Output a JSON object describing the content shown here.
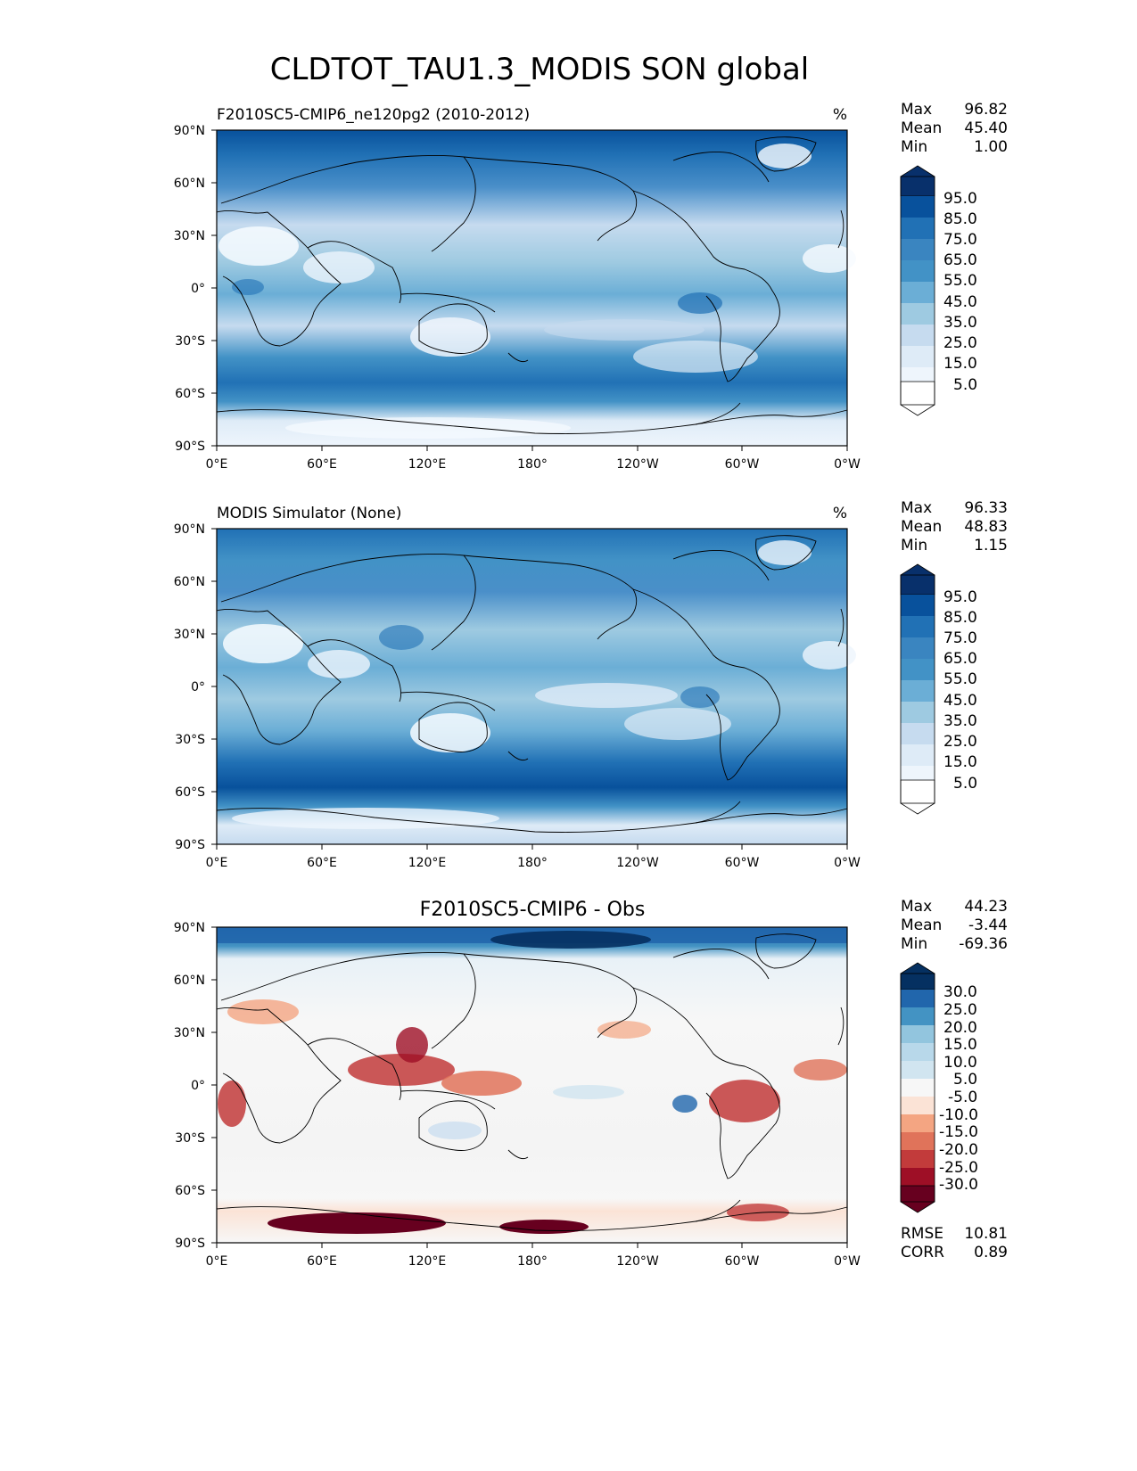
{
  "title": "CLDTOT_TAU1.3_MODIS SON global",
  "lat_ticks": [
    "90°N",
    "60°N",
    "30°N",
    "0°",
    "30°S",
    "60°S",
    "90°S"
  ],
  "lon_ticks": [
    "0°E",
    "60°E",
    "120°E",
    "180°",
    "120°W",
    "60°W",
    "0°W"
  ],
  "panels": [
    {
      "left_title": "F2010SC5-CMIP6_ne120pg2 (2010-2012)",
      "center_title": "",
      "units": "%",
      "stats": [
        {
          "label": "Max",
          "value": "96.82"
        },
        {
          "label": "Mean",
          "value": "45.40"
        },
        {
          "label": "Min",
          "value": "1.00"
        }
      ],
      "colorbar_labels": [
        "95.0",
        "85.0",
        "75.0",
        "65.0",
        "55.0",
        "45.0",
        "35.0",
        "25.0",
        "15.0",
        "5.0"
      ],
      "colorbar_colors": [
        "#08306b",
        "#08519c",
        "#2171b5",
        "#4292c6",
        "#6baed6",
        "#9ecae1",
        "#c6dbef",
        "#deebf7",
        "#eef5fc",
        "#f7fbff"
      ]
    },
    {
      "left_title": "MODIS Simulator (None)",
      "center_title": "",
      "units": "%",
      "stats": [
        {
          "label": "Max",
          "value": "96.33"
        },
        {
          "label": "Mean",
          "value": "48.83"
        },
        {
          "label": "Min",
          "value": "1.15"
        }
      ],
      "colorbar_labels": [
        "95.0",
        "85.0",
        "75.0",
        "65.0",
        "55.0",
        "45.0",
        "35.0",
        "25.0",
        "15.0",
        "5.0"
      ],
      "colorbar_colors": [
        "#08306b",
        "#08519c",
        "#2171b5",
        "#4292c6",
        "#6baed6",
        "#9ecae1",
        "#c6dbef",
        "#deebf7",
        "#eef5fc",
        "#f7fbff"
      ]
    },
    {
      "left_title": "",
      "center_title": "F2010SC5-CMIP6 - Obs",
      "units": "",
      "stats": [
        {
          "label": "Max",
          "value": "44.23"
        },
        {
          "label": "Mean",
          "value": "-3.44"
        },
        {
          "label": "Min",
          "value": "-69.36"
        }
      ],
      "colorbar_labels": [
        "30.0",
        "25.0",
        "20.0",
        "15.0",
        "10.0",
        "5.0",
        "-5.0",
        "-10.0",
        "-15.0",
        "-20.0",
        "-25.0",
        "-30.0"
      ],
      "colorbar_colors": [
        "#053061",
        "#2166ac",
        "#4393c3",
        "#92c5de",
        "#d1e5f0",
        "#e8f1f7",
        "#f7f7f7",
        "#fbe3d6",
        "#f4a582",
        "#e0735a",
        "#c23b3b",
        "#9e0f26",
        "#67001f"
      ],
      "bottom_stats": [
        {
          "label": "RMSE",
          "value": "10.81"
        },
        {
          "label": "CORR",
          "value": "0.89"
        }
      ]
    }
  ]
}
